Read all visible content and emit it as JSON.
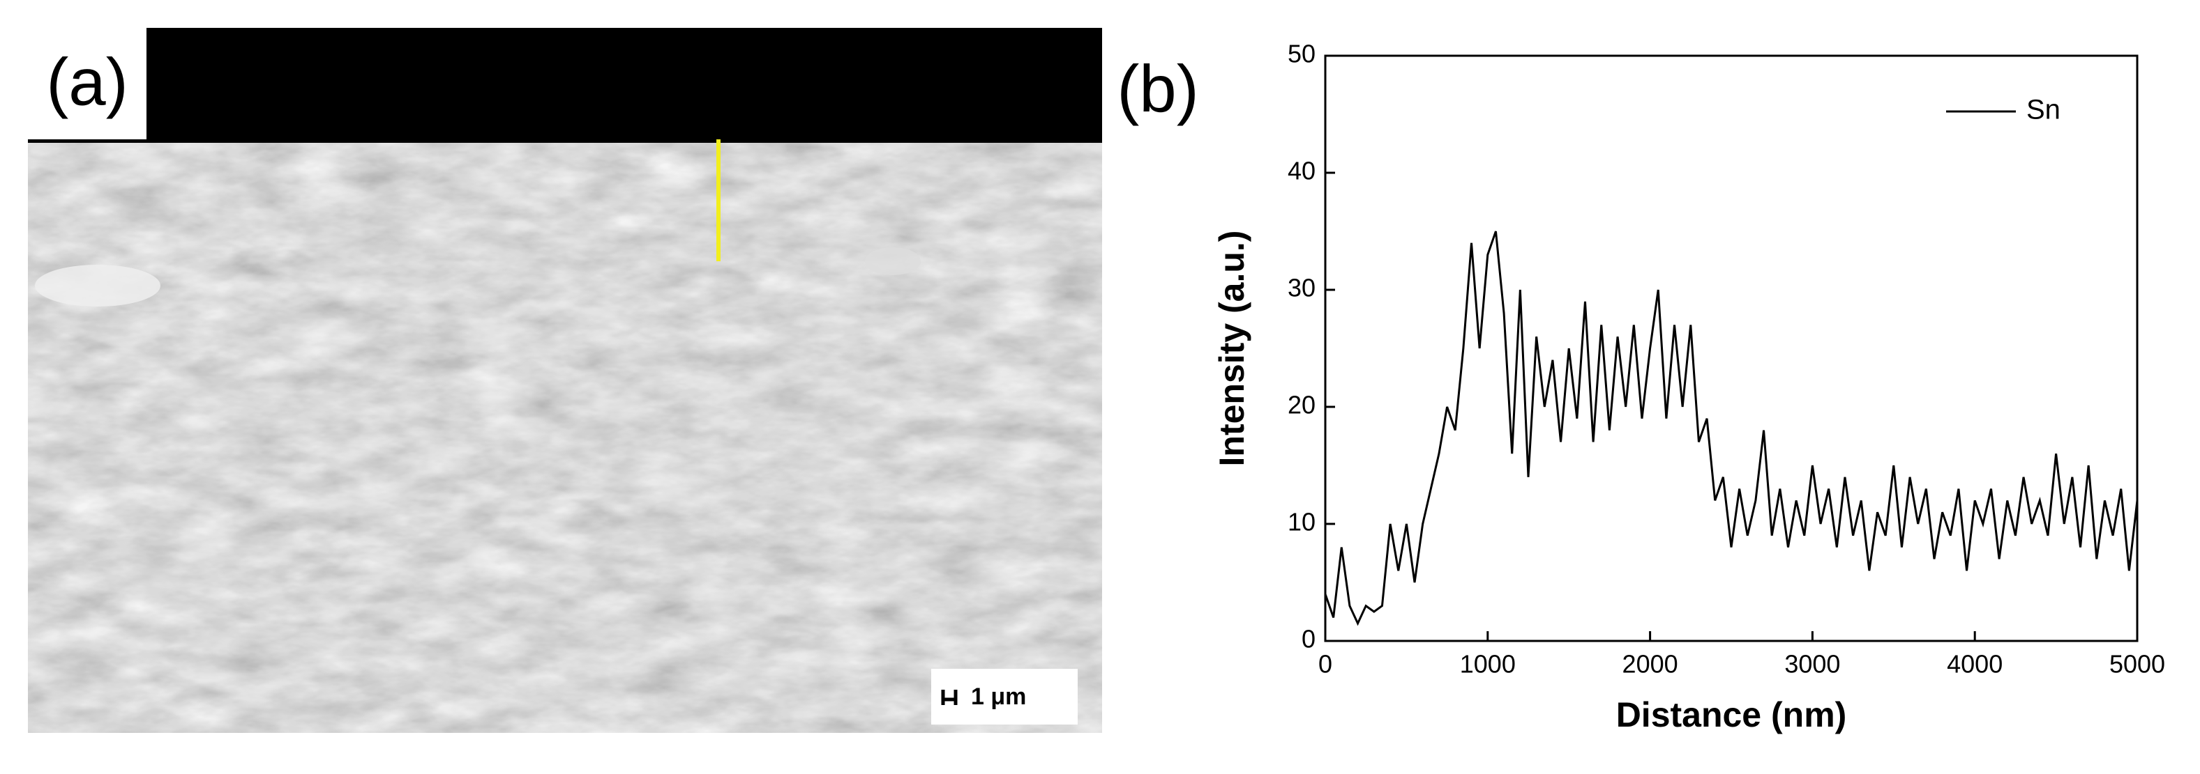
{
  "panel_labels": [
    "(a)",
    "(b)"
  ],
  "scale_bar_label": "1 μm",
  "chart_data": {
    "type": "line",
    "xlabel": "Distance (nm)",
    "ylabel": "Intensity (a.u.)",
    "legend": "upper right",
    "x": [
      0,
      50,
      100,
      150,
      200,
      250,
      300,
      350,
      400,
      450,
      500,
      550,
      600,
      650,
      700,
      750,
      800,
      850,
      900,
      950,
      1000,
      1050,
      1100,
      1150,
      1200,
      1250,
      1300,
      1350,
      1400,
      1450,
      1500,
      1550,
      1600,
      1650,
      1700,
      1750,
      1800,
      1850,
      1900,
      1950,
      2000,
      2050,
      2100,
      2150,
      2200,
      2250,
      2300,
      2350,
      2400,
      2450,
      2500,
      2550,
      2600,
      2650,
      2700,
      2750,
      2800,
      2850,
      2900,
      2950,
      3000,
      3050,
      3100,
      3150,
      3200,
      3250,
      3300,
      3350,
      3400,
      3450,
      3500,
      3550,
      3600,
      3650,
      3700,
      3750,
      3800,
      3850,
      3900,
      3950,
      4000,
      4050,
      4100,
      4150,
      4200,
      4250,
      4300,
      4350,
      4400,
      4450,
      4500,
      4550,
      4600,
      4650,
      4700,
      4750,
      4800,
      4850,
      4900,
      4950,
      5000
    ],
    "series": [
      {
        "name": "Sn",
        "color": "#000000",
        "values": [
          4,
          2,
          8,
          3,
          1.5,
          3,
          2.5,
          3,
          10,
          6,
          10,
          5,
          10,
          13,
          16,
          20,
          18,
          25,
          34,
          25,
          33,
          35,
          28,
          16,
          30,
          14,
          26,
          20,
          24,
          17,
          25,
          19,
          29,
          17,
          27,
          18,
          26,
          20,
          27,
          19,
          25,
          30,
          19,
          27,
          20,
          27,
          17,
          19,
          12,
          14,
          8,
          13,
          9,
          12,
          18,
          9,
          13,
          8,
          12,
          9,
          15,
          10,
          13,
          8,
          14,
          9,
          12,
          6,
          11,
          9,
          15,
          8,
          14,
          10,
          13,
          7,
          11,
          9,
          13,
          6,
          12,
          10,
          13,
          7,
          12,
          9,
          14,
          10,
          12,
          9,
          16,
          10,
          14,
          8,
          15,
          7,
          12,
          9,
          13,
          6,
          12
        ]
      }
    ],
    "xlim": [
      0,
      5000
    ],
    "xticks": [
      0,
      1000,
      2000,
      3000,
      4000,
      5000
    ],
    "ylim": [
      0,
      50
    ],
    "yticks": [
      0,
      10,
      20,
      30,
      40,
      50
    ]
  }
}
